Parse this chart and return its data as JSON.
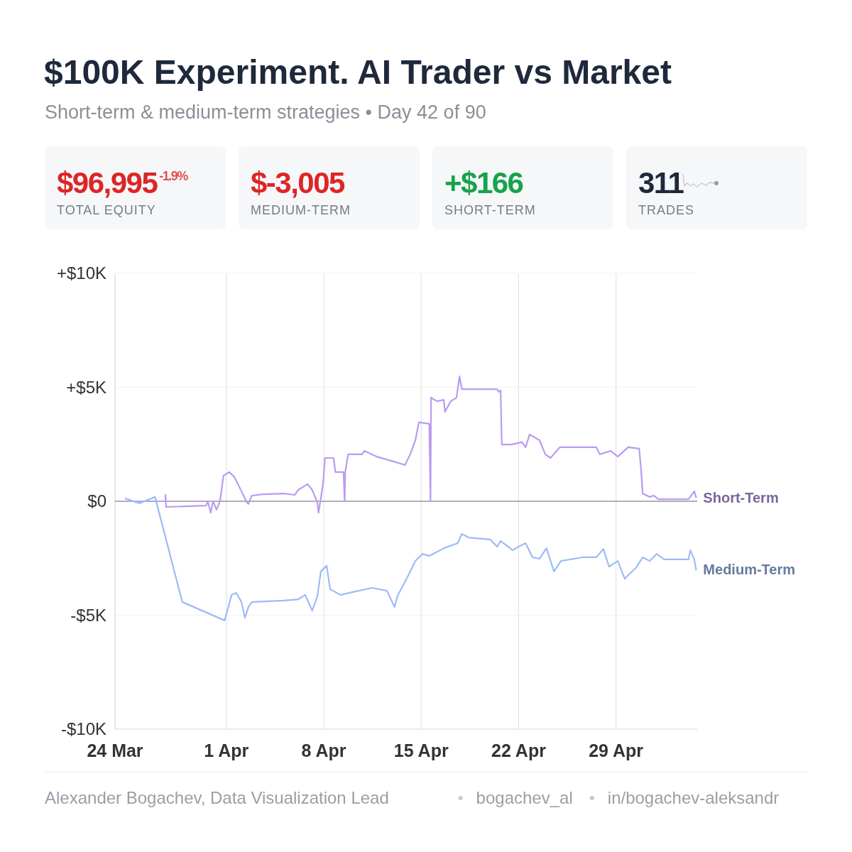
{
  "chart_data": [
    {
      "type": "other",
      "title": "$100K Experiment. AI Trader vs Market",
      "subtitle": "Short-term & medium-term strategies • Day 42 of 90",
      "annotations": [
        "$96,995",
        "-1.9%",
        "TOTAL EQUITY",
        "$-3,005",
        "MEDIUM-TERM",
        "+$166",
        "SHORT-TERM",
        "311",
        "TRADES"
      ]
    },
    {
      "type": "line",
      "xlim": [
        "--03-24",
        "--05-04T20:00"
      ],
      "ylim": [
        -10,
        10
      ],
      "xticks": [
        {
          "value": "--03-24",
          "label": "24 Mar"
        },
        {
          "value": "--04-01",
          "label": "1 Apr"
        },
        {
          "value": "--04-08",
          "label": "8 Apr"
        },
        {
          "value": "--04-15",
          "label": "15 Apr"
        },
        {
          "value": "--04-22",
          "label": "22 Apr"
        },
        {
          "value": "--04-29",
          "label": "29 Apr"
        }
      ],
      "yticks": [
        {
          "value": -10,
          "label": "-$10K"
        },
        {
          "value": -5,
          "label": "-$5K"
        },
        {
          "value": 0,
          "label": "$0"
        },
        {
          "value": 5,
          "label": "+$5K"
        },
        {
          "value": 10,
          "label": "+$10K"
        }
      ],
      "grid": true,
      "ref_lines": [
        {
          "axis": "y",
          "value": 0,
          "color": "#9a95a8"
        }
      ],
      "series": [
        {
          "name": "Short-Term",
          "color": "#b99cf0",
          "x": [
            "--03-24T16:00",
            "--03-27T15:00",
            "--03-27T15:00",
            "--03-27T16:00",
            "--03-30T13:00",
            "--03-30T16:00",
            "--03-30T21:00",
            "--03-31T01:00",
            "--03-31T07:00",
            "--03-31T13:00",
            "--03-31T19:00",
            "--04-01T05:00",
            "--04-01T14:00",
            "--04-02T02:00",
            "--04-02T11:00",
            "--04-02T14:00",
            "--04-02T20:00",
            "--04-03T15:00",
            "--04-05T03:00",
            "--04-05T22:00",
            "--04-06T04:00",
            "--04-06T20:00",
            "--04-07T04:00",
            "--04-07T13:00",
            "--04-07T15:00",
            "--04-07T23:00",
            "--04-08T02:00",
            "--04-08T17:00",
            "--04-08T20:00",
            "--04-09T10:00",
            "--04-09T12:00",
            "--04-09T13:00",
            "--04-09T18:00",
            "--04-10T18:00",
            "--04-10T22:00",
            "--04-11T19:00",
            "--04-13T01:00",
            "--04-13T20:00",
            "--04-14T05:00",
            "--04-14T14:00",
            "--04-14T20:00",
            "--04-15T14:00",
            "--04-15T16:00",
            "--04-15T17:00",
            "--04-16T03:00",
            "--04-16T15:00",
            "--04-16T17:00",
            "--04-17T03:00",
            "--04-17T13:00",
            "--04-17T18:00",
            "--04-17T22:00",
            "--04-20T11:00",
            "--04-20T14:00",
            "--04-20T17:00",
            "--04-20T19:00",
            "--04-21T11:00",
            "--04-22T06:00",
            "--04-22T12:00",
            "--04-22T19:00",
            "--04-23T12:00",
            "--04-23T22:00",
            "--04-24T07:00",
            "--04-24T23:00",
            "--04-27T14:00",
            "--04-27T20:00",
            "--04-28T15:00",
            "--04-29T03:00",
            "--04-29T21:00",
            "--04-30T16:00",
            "--04-30T19:00",
            "--04-30T22:00",
            "--05-01T10:00",
            "--05-01T17:00",
            "--05-02T01:00",
            "--05-04T05:00",
            "--05-04T08:00",
            "--05-04T15:00",
            "--05-04T18:00"
          ],
          "values": [
            0,
            0,
            0.28,
            -0.25,
            -0.19,
            0,
            -0.5,
            0,
            -0.37,
            0,
            1.12,
            1.28,
            1.06,
            0.44,
            -0.03,
            -0.12,
            0.25,
            0.31,
            0.34,
            0.28,
            0.5,
            0.75,
            0.5,
            -0.06,
            -0.5,
            0.81,
            1.9,
            1.9,
            1.28,
            1.28,
            0,
            1.28,
            2.06,
            2.06,
            2.21,
            1.96,
            1.74,
            1.59,
            2.06,
            2.68,
            3.46,
            3.4,
            0,
            4.55,
            4.39,
            4.45,
            3.93,
            4.39,
            4.55,
            5.48,
            4.92,
            4.92,
            4.8,
            4.86,
            2.49,
            2.49,
            2.59,
            2.37,
            2.93,
            2.68,
            2.06,
            1.9,
            2.37,
            2.37,
            2.06,
            2.21,
            1.96,
            2.37,
            2.31,
            1.43,
            0.34,
            0.19,
            0.25,
            0.09,
            0.09,
            0.19,
            0.44,
            0.17
          ]
        },
        {
          "name": "Medium-Term",
          "color": "#9cbcf5",
          "x": [
            "--03-24T18:00",
            "--03-25T18:00",
            "--03-26T21:00",
            "--03-28T20:00",
            "--03-31T21:00",
            "--04-01T09:00",
            "--04-01T17:00",
            "--04-02T02:00",
            "--04-02T08:00",
            "--04-02T14:00",
            "--04-02T20:00",
            "--04-05T03:00",
            "--04-06T04:00",
            "--04-06T16:00",
            "--04-07T04:00",
            "--04-07T13:00",
            "--04-07T19:00",
            "--04-08T05:00",
            "--04-08T11:00",
            "--04-09T05:00",
            "--04-10T06:00",
            "--04-11T12:00",
            "--04-12T13:00",
            "--04-13T02:00",
            "--04-13T07:00",
            "--04-14T02:00",
            "--04-14T14:00",
            "--04-15T02:00",
            "--04-15T14:00",
            "--04-16T15:00",
            "--04-17T15:00",
            "--04-17T22:00",
            "--04-18T10:00",
            "--04-19T23:00",
            "--04-20T11:00",
            "--04-20T17:00",
            "--04-21T14:00",
            "--04-22T00:00",
            "--04-22T12:00",
            "--04-22T18:00",
            "--04-23T00:00",
            "--04-23T12:00",
            "--04-24T00:00",
            "--04-24T13:00",
            "--04-25T01:00",
            "--04-26T14:00",
            "--04-27T14:00",
            "--04-28T02:00",
            "--04-28T12:00",
            "--04-29T03:00",
            "--04-29T15:00",
            "--04-29T21:00",
            "--04-30T10:00",
            "--04-30T22:00",
            "--05-01T10:00",
            "--05-01T22:00",
            "--05-02T11:00",
            "--05-04T05:00",
            "--05-04T08:00",
            "--05-04T15:00",
            "--05-04T18:00"
          ],
          "values": [
            0.12,
            -0.09,
            0.19,
            -4.42,
            -5.23,
            -4.11,
            -4.02,
            -4.42,
            -5.11,
            -4.64,
            -4.42,
            -4.36,
            -4.3,
            -4.11,
            -4.8,
            -4.17,
            -3.08,
            -2.83,
            -3.86,
            -4.11,
            -3.96,
            -3.8,
            -3.93,
            -4.64,
            -4.17,
            -3.24,
            -2.62,
            -2.31,
            -2.4,
            -2.06,
            -1.84,
            -1.43,
            -1.59,
            -1.68,
            -1.99,
            -1.74,
            -2.15,
            -1.99,
            -1.84,
            -2.15,
            -2.46,
            -2.52,
            -2.06,
            -3.08,
            -2.62,
            -2.46,
            -2.46,
            -2.09,
            -2.87,
            -2.62,
            -3.4,
            -3.24,
            -2.93,
            -2.46,
            -2.62,
            -2.31,
            -2.55,
            -2.55,
            -2.15,
            -2.55,
            -3.0
          ]
        }
      ],
      "annotations": [
        "Alexander Bogachev, Data Visualization Lead",
        "bogachev_al",
        "in/bogachev-aleksandr"
      ]
    }
  ]
}
